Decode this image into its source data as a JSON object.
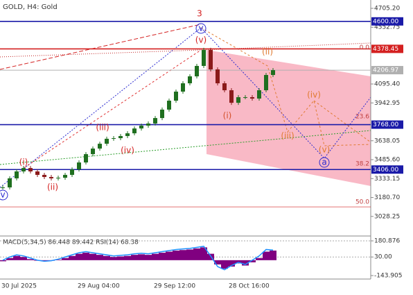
{
  "chart_data": {
    "type": "candlestick",
    "title": "GOLD, H4:  Gold",
    "up_color": "#1f6f1f",
    "down_color": "#8b1a1a",
    "values": [
      3262,
      3335,
      3391,
      3418,
      3391,
      3363,
      3346,
      3335,
      3340,
      3363,
      3407,
      3463,
      3530,
      3575,
      3614,
      3654,
      3659,
      3676,
      3698,
      3737,
      3760,
      3777,
      3821,
      3889,
      3961,
      4034,
      4101,
      4157,
      4241,
      4370,
      4213,
      4101,
      4045,
      3944,
      3989,
      3989,
      3978,
      4045,
      4168,
      4207
    ],
    "ylim": [
      2870.4,
      4772.3
    ],
    "yticks": [
      {
        "value": 4705.2,
        "label": "4705.20"
      },
      4552.75,
      {
        "value": 4095.4,
        "label": "4095.40"
      },
      3942.95,
      3638.05,
      {
        "value": 3485.6,
        "label": "3485.60"
      },
      3333.15,
      {
        "value": 3180.7,
        "label": "3180.70"
      },
      3028.25
    ],
    "xlabels": [
      "30 Jul 2025",
      "29 Aug 04:00",
      "29 Sep 12:00",
      "28 Oct 16:00"
    ],
    "levels": [
      {
        "value": 4600,
        "label": "4600.00",
        "color": "#1a1aa8"
      },
      {
        "value": 4378.45,
        "label": "4378.45",
        "color": "#d42020"
      },
      {
        "value": 4206.97,
        "label": "4206.97",
        "color": "#b0b0b0"
      },
      {
        "value": 3768,
        "label": "3768.00",
        "color": "#1a1aa8"
      },
      {
        "value": 3406,
        "label": "3406.00",
        "color": "#1a1aa8"
      }
    ],
    "fib": [
      {
        "value": 4378.45,
        "label": "0.0"
      },
      {
        "value": 3821,
        "label": "23.6"
      },
      {
        "value": 3441,
        "label": "38.2"
      },
      {
        "value": 3133,
        "label": "50.0"
      }
    ],
    "annotations": [
      "3",
      "v",
      "(v)",
      "(ii)",
      "(i)",
      "(iii)",
      "(iv)",
      "(v)",
      "a",
      "(i)",
      "(ii)",
      "(iii)",
      "(iv)",
      "v"
    ],
    "indicator": {
      "label": "MACD(5,34,5) 86.448 89.442 RSI(14) 68.38",
      "ylim": [
        -176.4,
        206.9
      ],
      "yticks": [
        {
          "value": 180.876,
          "label": "180.876"
        },
        {
          "value": 30,
          "label": "30.00"
        },
        -143.905
      ],
      "histogram_color": "#800080",
      "line_color": "#1e90ff",
      "histogram": [
        -10,
        20,
        40,
        30,
        10,
        -5,
        -10,
        -5,
        5,
        20,
        40,
        60,
        70,
        60,
        50,
        40,
        30,
        35,
        40,
        50,
        55,
        50,
        60,
        70,
        80,
        90,
        95,
        100,
        110,
        120,
        60,
        -40,
        -80,
        -60,
        -30,
        -50,
        -20,
        20,
        80,
        90
      ],
      "line": [
        0,
        30,
        50,
        40,
        20,
        0,
        -10,
        -5,
        10,
        30,
        50,
        70,
        80,
        70,
        60,
        50,
        40,
        45,
        50,
        60,
        65,
        60,
        70,
        80,
        90,
        100,
        105,
        110,
        120,
        130,
        40,
        -60,
        -90,
        -50,
        -20,
        -40,
        0,
        40,
        100,
        95
      ]
    }
  }
}
